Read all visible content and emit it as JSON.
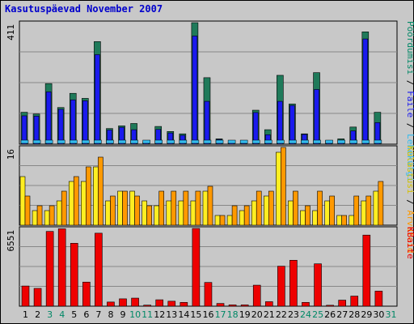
{
  "chart_data": {
    "type": "bar",
    "title": "Kasutuspäevad November 2007",
    "categories": [
      "1",
      "2",
      "3",
      "4",
      "5",
      "6",
      "7",
      "8",
      "9",
      "10",
      "11",
      "12",
      "13",
      "14",
      "15",
      "16",
      "17",
      "18",
      "19",
      "20",
      "21",
      "22",
      "23",
      "24",
      "25",
      "26",
      "27",
      "28",
      "29",
      "30",
      "31"
    ],
    "weekend_days": [
      "3",
      "4",
      "10",
      "11",
      "17",
      "18",
      "24",
      "25",
      "31"
    ],
    "grid": true,
    "colors": {
      "hits": "#1f7a5a",
      "files": "#1a1aee",
      "pages": "#33bbee",
      "visits": "#ffee22",
      "sites": "#ff9900",
      "kbytes": "#ee0000",
      "weekday_label": "#000000",
      "weekend_label": "#008866",
      "background": "#c8c8c8",
      "title": "#0000cc"
    },
    "panels": [
      {
        "id": "top",
        "ytick_label": "411",
        "ylim": [
          0,
          411
        ],
        "right_label": [
          {
            "text": "Pöördumisi",
            "color": "#008866"
          },
          {
            "text": " / ",
            "color": "#000000"
          },
          {
            "text": "Faile",
            "color": "#1a1aee"
          },
          {
            "text": " / ",
            "color": "#000000"
          },
          {
            "text": "Lehekülgi",
            "color": "#33bbee"
          }
        ],
        "series": [
          {
            "name": "Pöördumisi",
            "color_key": "hits",
            "values": [
              108,
              102,
              205,
              124,
              172,
              155,
              347,
              53,
              62,
              70,
              7,
              60,
              43,
              35,
              411,
              225,
              18,
              5,
              5,
              115,
              49,
              233,
              136,
              35,
              242,
              12,
              18,
              58,
              380,
              108,
              0
            ]
          },
          {
            "name": "Faile",
            "color_key": "files",
            "values": [
              96,
              95,
              177,
              118,
              150,
              147,
              303,
              48,
              57,
              49,
              6,
              50,
              38,
              30,
              366,
              145,
              16,
              4,
              3,
              107,
              32,
              145,
              131,
              33,
              185,
              9,
              14,
              45,
              356,
              73,
              0
            ]
          },
          {
            "name": "Lehekülgi",
            "color_key": "pages",
            "values": [
              14,
              11,
              10,
              10,
              11,
              12,
              16,
              11,
              10,
              11,
              2,
              10,
              9,
              8,
              14,
              10,
              5,
              2,
              2,
              9,
              8,
              18,
              15,
              9,
              10,
              4,
              4,
              11,
              15,
              12,
              0
            ]
          }
        ]
      },
      {
        "id": "middle",
        "ytick_label": "16",
        "ylim": [
          0,
          16
        ],
        "right_label": [
          {
            "text": "Külastusi",
            "color": "#d4c000"
          },
          {
            "text": " / ",
            "color": "#000000"
          },
          {
            "text": "Arvuteid",
            "color": "#ff9900"
          }
        ],
        "series": [
          {
            "name": "Külastusi",
            "color_key": "visits",
            "values": [
              10,
              3,
              3,
              5,
              9,
              9,
              12,
              5,
              7,
              7,
              5,
              4,
              5,
              5,
              5,
              7,
              2,
              2,
              3,
              5,
              6,
              15,
              5,
              3,
              3,
              5,
              2,
              2,
              5,
              7,
              0
            ]
          },
          {
            "name": "Arvuteid",
            "color_key": "sites",
            "values": [
              6,
              4,
              4,
              7,
              10,
              12,
              14,
              6,
              7,
              6,
              4,
              7,
              7,
              7,
              7,
              8,
              2,
              4,
              4,
              7,
              7,
              16,
              7,
              4,
              7,
              6,
              2,
              6,
              6,
              9,
              0
            ]
          }
        ]
      },
      {
        "id": "bottom",
        "ytick_label": "6551",
        "ylim": [
          0,
          6551
        ],
        "right_label": [
          {
            "text": "KBaite",
            "color": "#ee0000"
          }
        ],
        "series": [
          {
            "name": "KBaite",
            "color_key": "kbytes",
            "values": [
              1700,
              1500,
              6300,
              6520,
              5300,
              2030,
              6150,
              350,
              620,
              680,
              90,
              540,
              420,
              320,
              6550,
              2000,
              230,
              110,
              110,
              1770,
              380,
              3370,
              3870,
              320,
              3570,
              80,
              510,
              850,
              5990,
              1270,
              0
            ]
          }
        ]
      }
    ]
  }
}
